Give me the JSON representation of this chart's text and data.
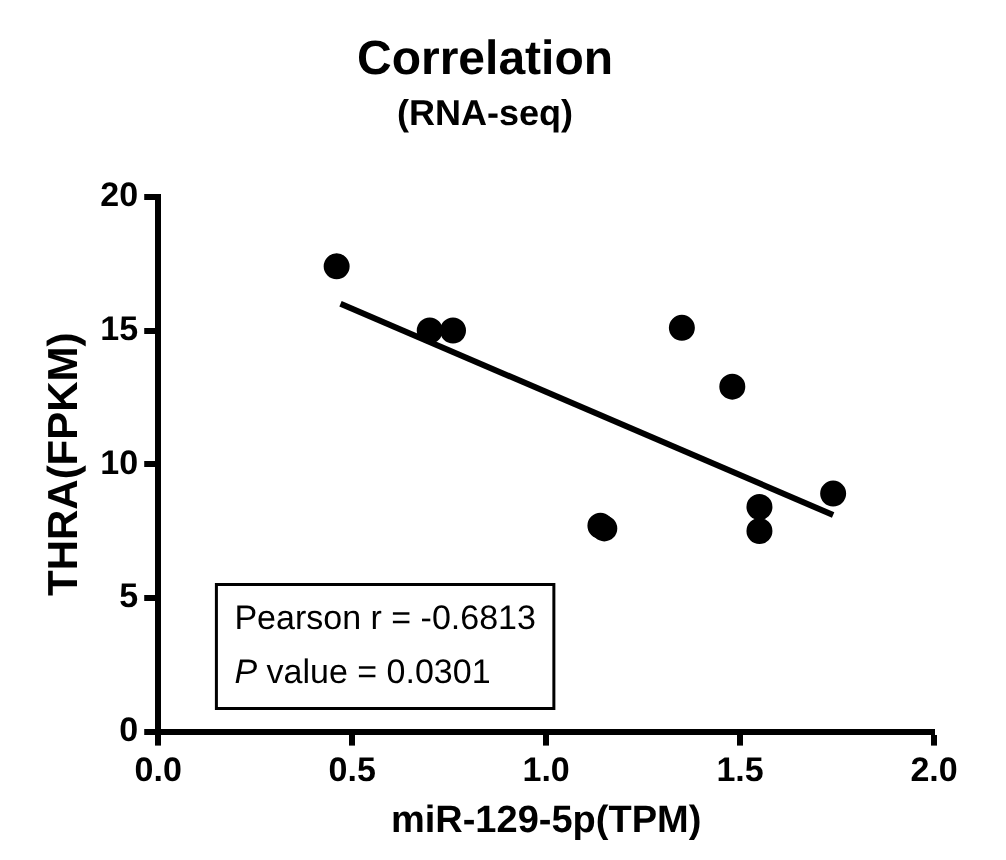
{
  "chart_data": {
    "type": "scatter",
    "title": "Correlation",
    "subtitle": "(RNA-seq)",
    "xlabel": "miR-129-5p(TPM)",
    "ylabel": "THRA(FPKM)",
    "xlim": [
      0,
      2
    ],
    "xticks": [
      {
        "value": 0,
        "label": "0.0"
      },
      {
        "value": 0.5,
        "label": "0.5"
      },
      {
        "value": 1,
        "label": "1.0"
      },
      {
        "value": 1.5,
        "label": "1.5"
      },
      {
        "value": 2,
        "label": "2.0"
      }
    ],
    "ylim": [
      0,
      20
    ],
    "yticks": [
      0,
      5,
      10,
      15,
      20
    ],
    "grid": false,
    "legend": false,
    "marker": "circle",
    "series": [
      {
        "type": "scatter",
        "color": "#000000",
        "x": [
          0.46,
          0.7,
          0.76,
          1.14,
          1.15,
          1.35,
          1.48,
          1.55,
          1.55,
          1.74
        ],
        "values": [
          17.4,
          15.0,
          15.0,
          7.7,
          7.6,
          15.1,
          12.9,
          8.4,
          7.5,
          8.9
        ]
      },
      {
        "type": "line",
        "color": "#000000",
        "marker": "none",
        "line_style": "solid",
        "x": [
          0.47,
          1.74
        ],
        "values": [
          16.0,
          8.1
        ]
      }
    ],
    "annotations": [
      "Pearson r = -0.6813",
      "P value = 0.0301"
    ]
  }
}
